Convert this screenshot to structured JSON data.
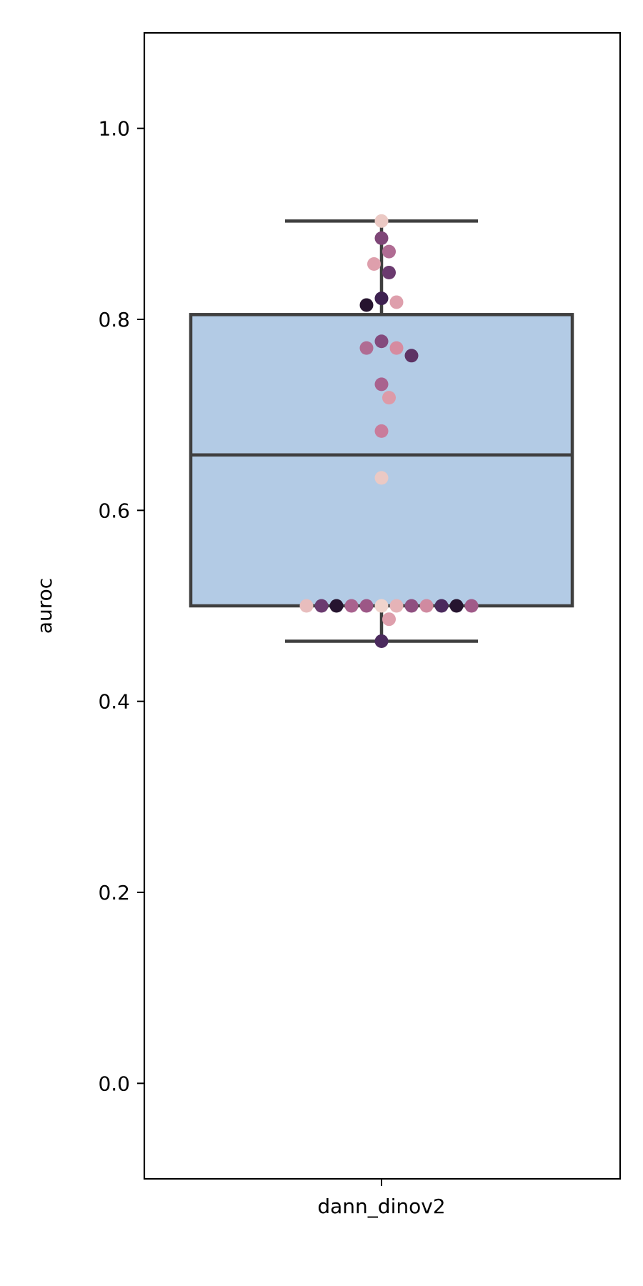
{
  "chart_data": {
    "type": "box",
    "categories": [
      "dann_dinov2"
    ],
    "ylabel": "auroc",
    "xlabel": "",
    "ylim": [
      -0.1,
      1.1
    ],
    "yticks": [
      0.0,
      0.2,
      0.4,
      0.6,
      0.8,
      1.0
    ],
    "ytick_labels": [
      "0.0",
      "0.2",
      "0.4",
      "0.6",
      "0.8",
      "1.0"
    ],
    "grid": false,
    "box": {
      "whisker_low": 0.463,
      "q1": 0.5,
      "median": 0.658,
      "q3": 0.805,
      "whisker_high": 0.903,
      "fill": "#b3cbe5",
      "edge": "#3f3f3f"
    },
    "points": [
      {
        "y": 0.903,
        "color": "#ebc9c4"
      },
      {
        "y": 0.885,
        "color": "#7e4677"
      },
      {
        "y": 0.871,
        "color": "#b06c93"
      },
      {
        "y": 0.858,
        "color": "#de9fac"
      },
      {
        "y": 0.849,
        "color": "#6b3a6f"
      },
      {
        "y": 0.822,
        "color": "#3d2150"
      },
      {
        "y": 0.818,
        "color": "#de9fac"
      },
      {
        "y": 0.815,
        "color": "#26142f"
      },
      {
        "y": 0.777,
        "color": "#844a7d"
      },
      {
        "y": 0.77,
        "color": "#d68ba0"
      },
      {
        "y": 0.77,
        "color": "#b06c93"
      },
      {
        "y": 0.762,
        "color": "#5d3264"
      },
      {
        "y": 0.732,
        "color": "#a9628e"
      },
      {
        "y": 0.718,
        "color": "#dd9aa8"
      },
      {
        "y": 0.683,
        "color": "#c97c9b"
      },
      {
        "y": 0.634,
        "color": "#ebc9c4"
      },
      {
        "y": 0.5,
        "color": "#f0d3cc"
      },
      {
        "y": 0.5,
        "color": "#e5b3b7"
      },
      {
        "y": 0.5,
        "color": "#9c5786"
      },
      {
        "y": 0.5,
        "color": "#8f4f80"
      },
      {
        "y": 0.5,
        "color": "#a9628e"
      },
      {
        "y": 0.5,
        "color": "#d08aa0"
      },
      {
        "y": 0.5,
        "color": "#26142f"
      },
      {
        "y": 0.5,
        "color": "#4b2a5d"
      },
      {
        "y": 0.5,
        "color": "#6b3a6f"
      },
      {
        "y": 0.5,
        "color": "#26142f"
      },
      {
        "y": 0.5,
        "color": "#e8bdbd"
      },
      {
        "y": 0.5,
        "color": "#a05a88"
      },
      {
        "y": 0.486,
        "color": "#de9fac"
      },
      {
        "y": 0.463,
        "color": "#4b2a5d"
      }
    ]
  }
}
